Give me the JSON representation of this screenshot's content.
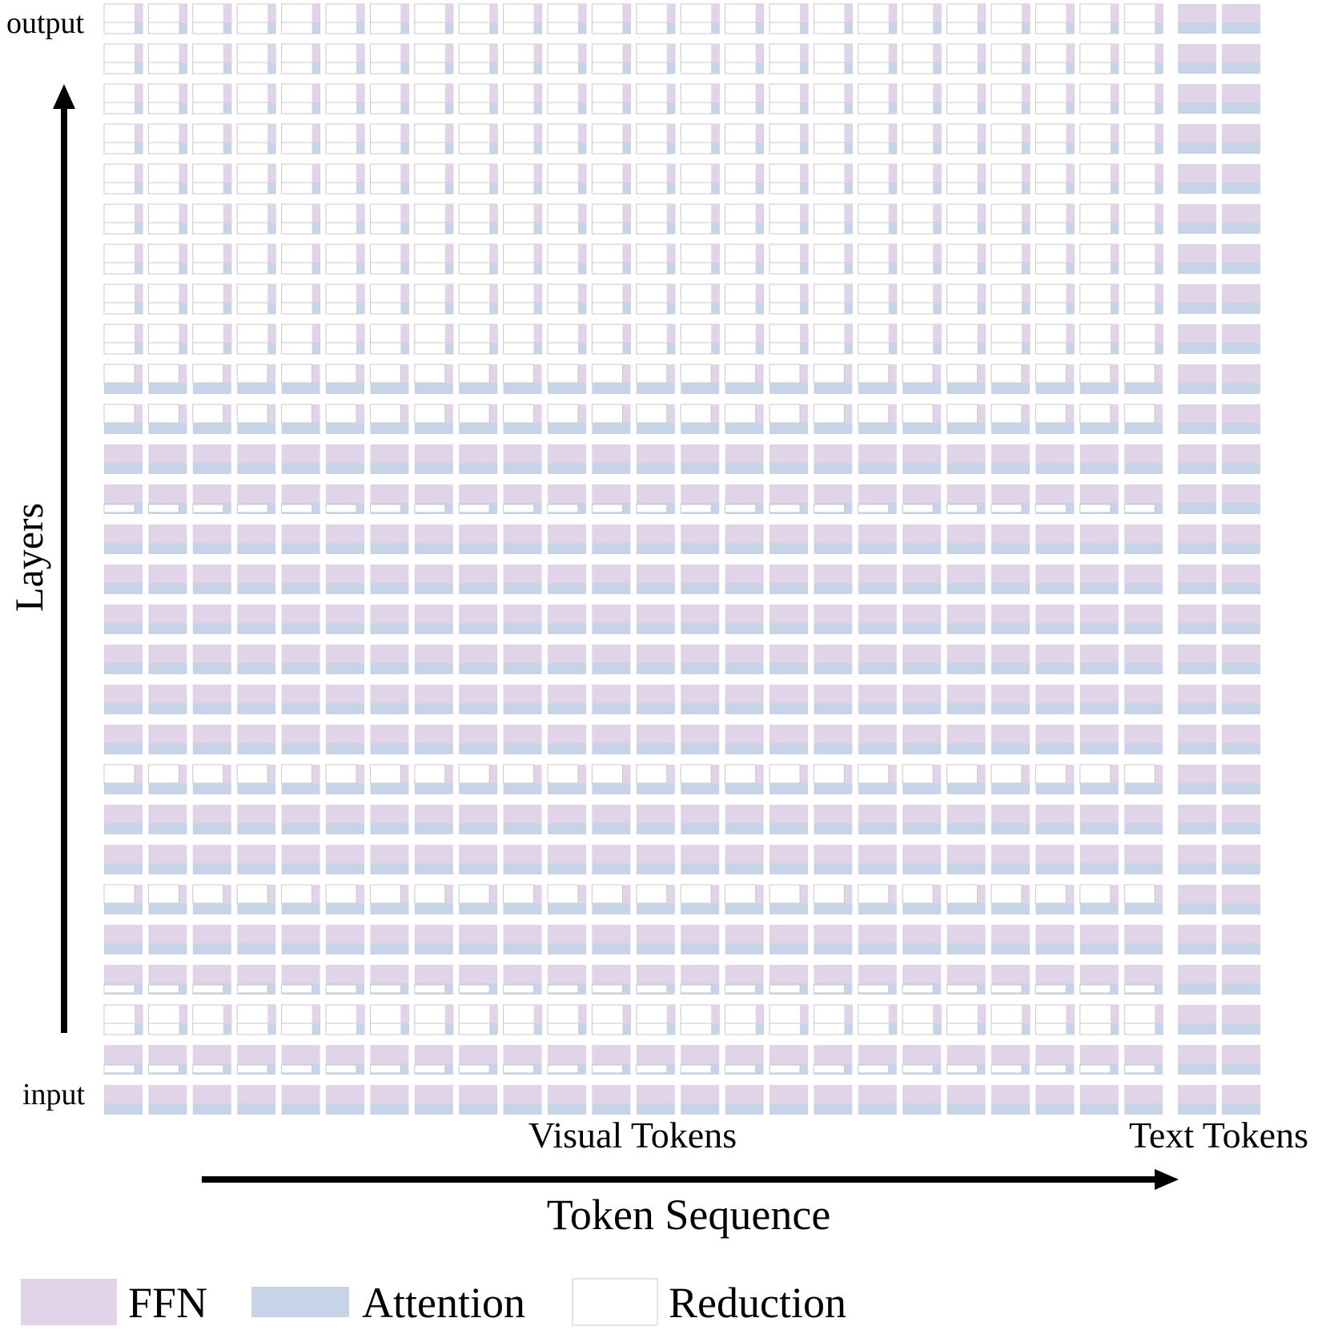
{
  "labels": {
    "output": "output",
    "input": "input",
    "layers": "Layers",
    "visual_tokens": "Visual Tokens",
    "text_tokens": "Text Tokens",
    "token_sequence": "Token Sequence"
  },
  "legend": [
    {
      "key": "ffn",
      "label": "FFN",
      "color": "#e1d3e8"
    },
    {
      "key": "attention",
      "label": "Attention",
      "color": "#c7d4e8"
    },
    {
      "key": "reduction",
      "label": "Reduction",
      "color": "#ffffff"
    }
  ],
  "colors": {
    "ffn": "#e1d3e8",
    "attention": "#c7d4e8",
    "reduction_border": "#c8c8c8",
    "arrow": "#000000"
  },
  "grid": {
    "visual_token_count": 24,
    "text_token_count": 2,
    "layer_count": 28,
    "layer_patterns_top_to_bottom": [
      "R",
      "R",
      "R",
      "R",
      "R",
      "R",
      "R",
      "R",
      "R",
      "F",
      "F",
      "N",
      "A",
      "N",
      "N",
      "N",
      "N",
      "N",
      "N",
      "F",
      "N",
      "N",
      "F",
      "N",
      "A",
      "R",
      "A",
      "N"
    ],
    "pattern_legend": {
      "N": "FFN + Attention (full)",
      "R": "FFN + Attention reduced",
      "F": "FFN reduced",
      "A": "Attention reduced"
    }
  }
}
